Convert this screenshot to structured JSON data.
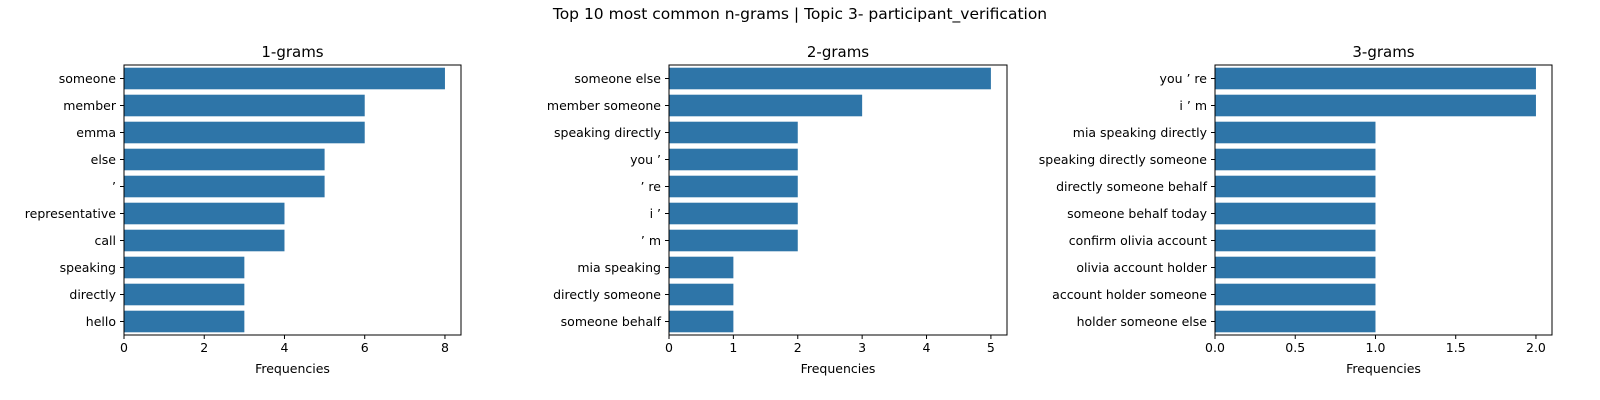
{
  "figure": {
    "title": "Top 10 most common n-grams | Topic 3- participant_verification"
  },
  "colors": {
    "bar": "#2e75a8",
    "axis": "#000000"
  },
  "chart_data": [
    {
      "type": "bar",
      "orientation": "horizontal",
      "title": "1-grams",
      "xlabel": "Frequencies",
      "ylabel": "",
      "categories": [
        "someone",
        "member",
        "emma",
        "else",
        "’",
        "representative",
        "call",
        "speaking",
        "directly",
        "hello"
      ],
      "values": [
        8,
        6,
        6,
        5,
        5,
        4,
        4,
        3,
        3,
        3
      ],
      "xlim": [
        0,
        8.4
      ],
      "xticks": [
        0,
        2,
        4,
        6,
        8
      ],
      "xtick_labels": [
        "0",
        "2",
        "4",
        "6",
        "8"
      ],
      "grid": false,
      "legend": "none"
    },
    {
      "type": "bar",
      "orientation": "horizontal",
      "title": "2-grams",
      "xlabel": "Frequencies",
      "ylabel": "",
      "categories": [
        "someone else",
        "member someone",
        "speaking directly",
        "you ’",
        "’ re",
        "i ’",
        "’ m",
        "mia speaking",
        "directly someone",
        "someone behalf"
      ],
      "values": [
        5,
        3,
        2,
        2,
        2,
        2,
        2,
        1,
        1,
        1
      ],
      "xlim": [
        0,
        5.25
      ],
      "xticks": [
        0,
        1,
        2,
        3,
        4,
        5
      ],
      "xtick_labels": [
        "0",
        "1",
        "2",
        "3",
        "4",
        "5"
      ],
      "grid": false,
      "legend": "none"
    },
    {
      "type": "bar",
      "orientation": "horizontal",
      "title": "3-grams",
      "xlabel": "Frequencies",
      "ylabel": "",
      "categories": [
        "you ’ re",
        "i ’ m",
        "mia speaking directly",
        "speaking directly someone",
        "directly someone behalf",
        "someone behalf today",
        "confirm olivia account",
        "olivia account holder",
        "account holder someone",
        "holder someone else"
      ],
      "values": [
        2,
        2,
        1,
        1,
        1,
        1,
        1,
        1,
        1,
        1
      ],
      "xlim": [
        0,
        2.1
      ],
      "xticks": [
        0,
        0.5,
        1,
        1.5,
        2
      ],
      "xtick_labels": [
        "0.0",
        "0.5",
        "1.0",
        "1.5",
        "2.0"
      ],
      "grid": false,
      "legend": "none"
    }
  ]
}
